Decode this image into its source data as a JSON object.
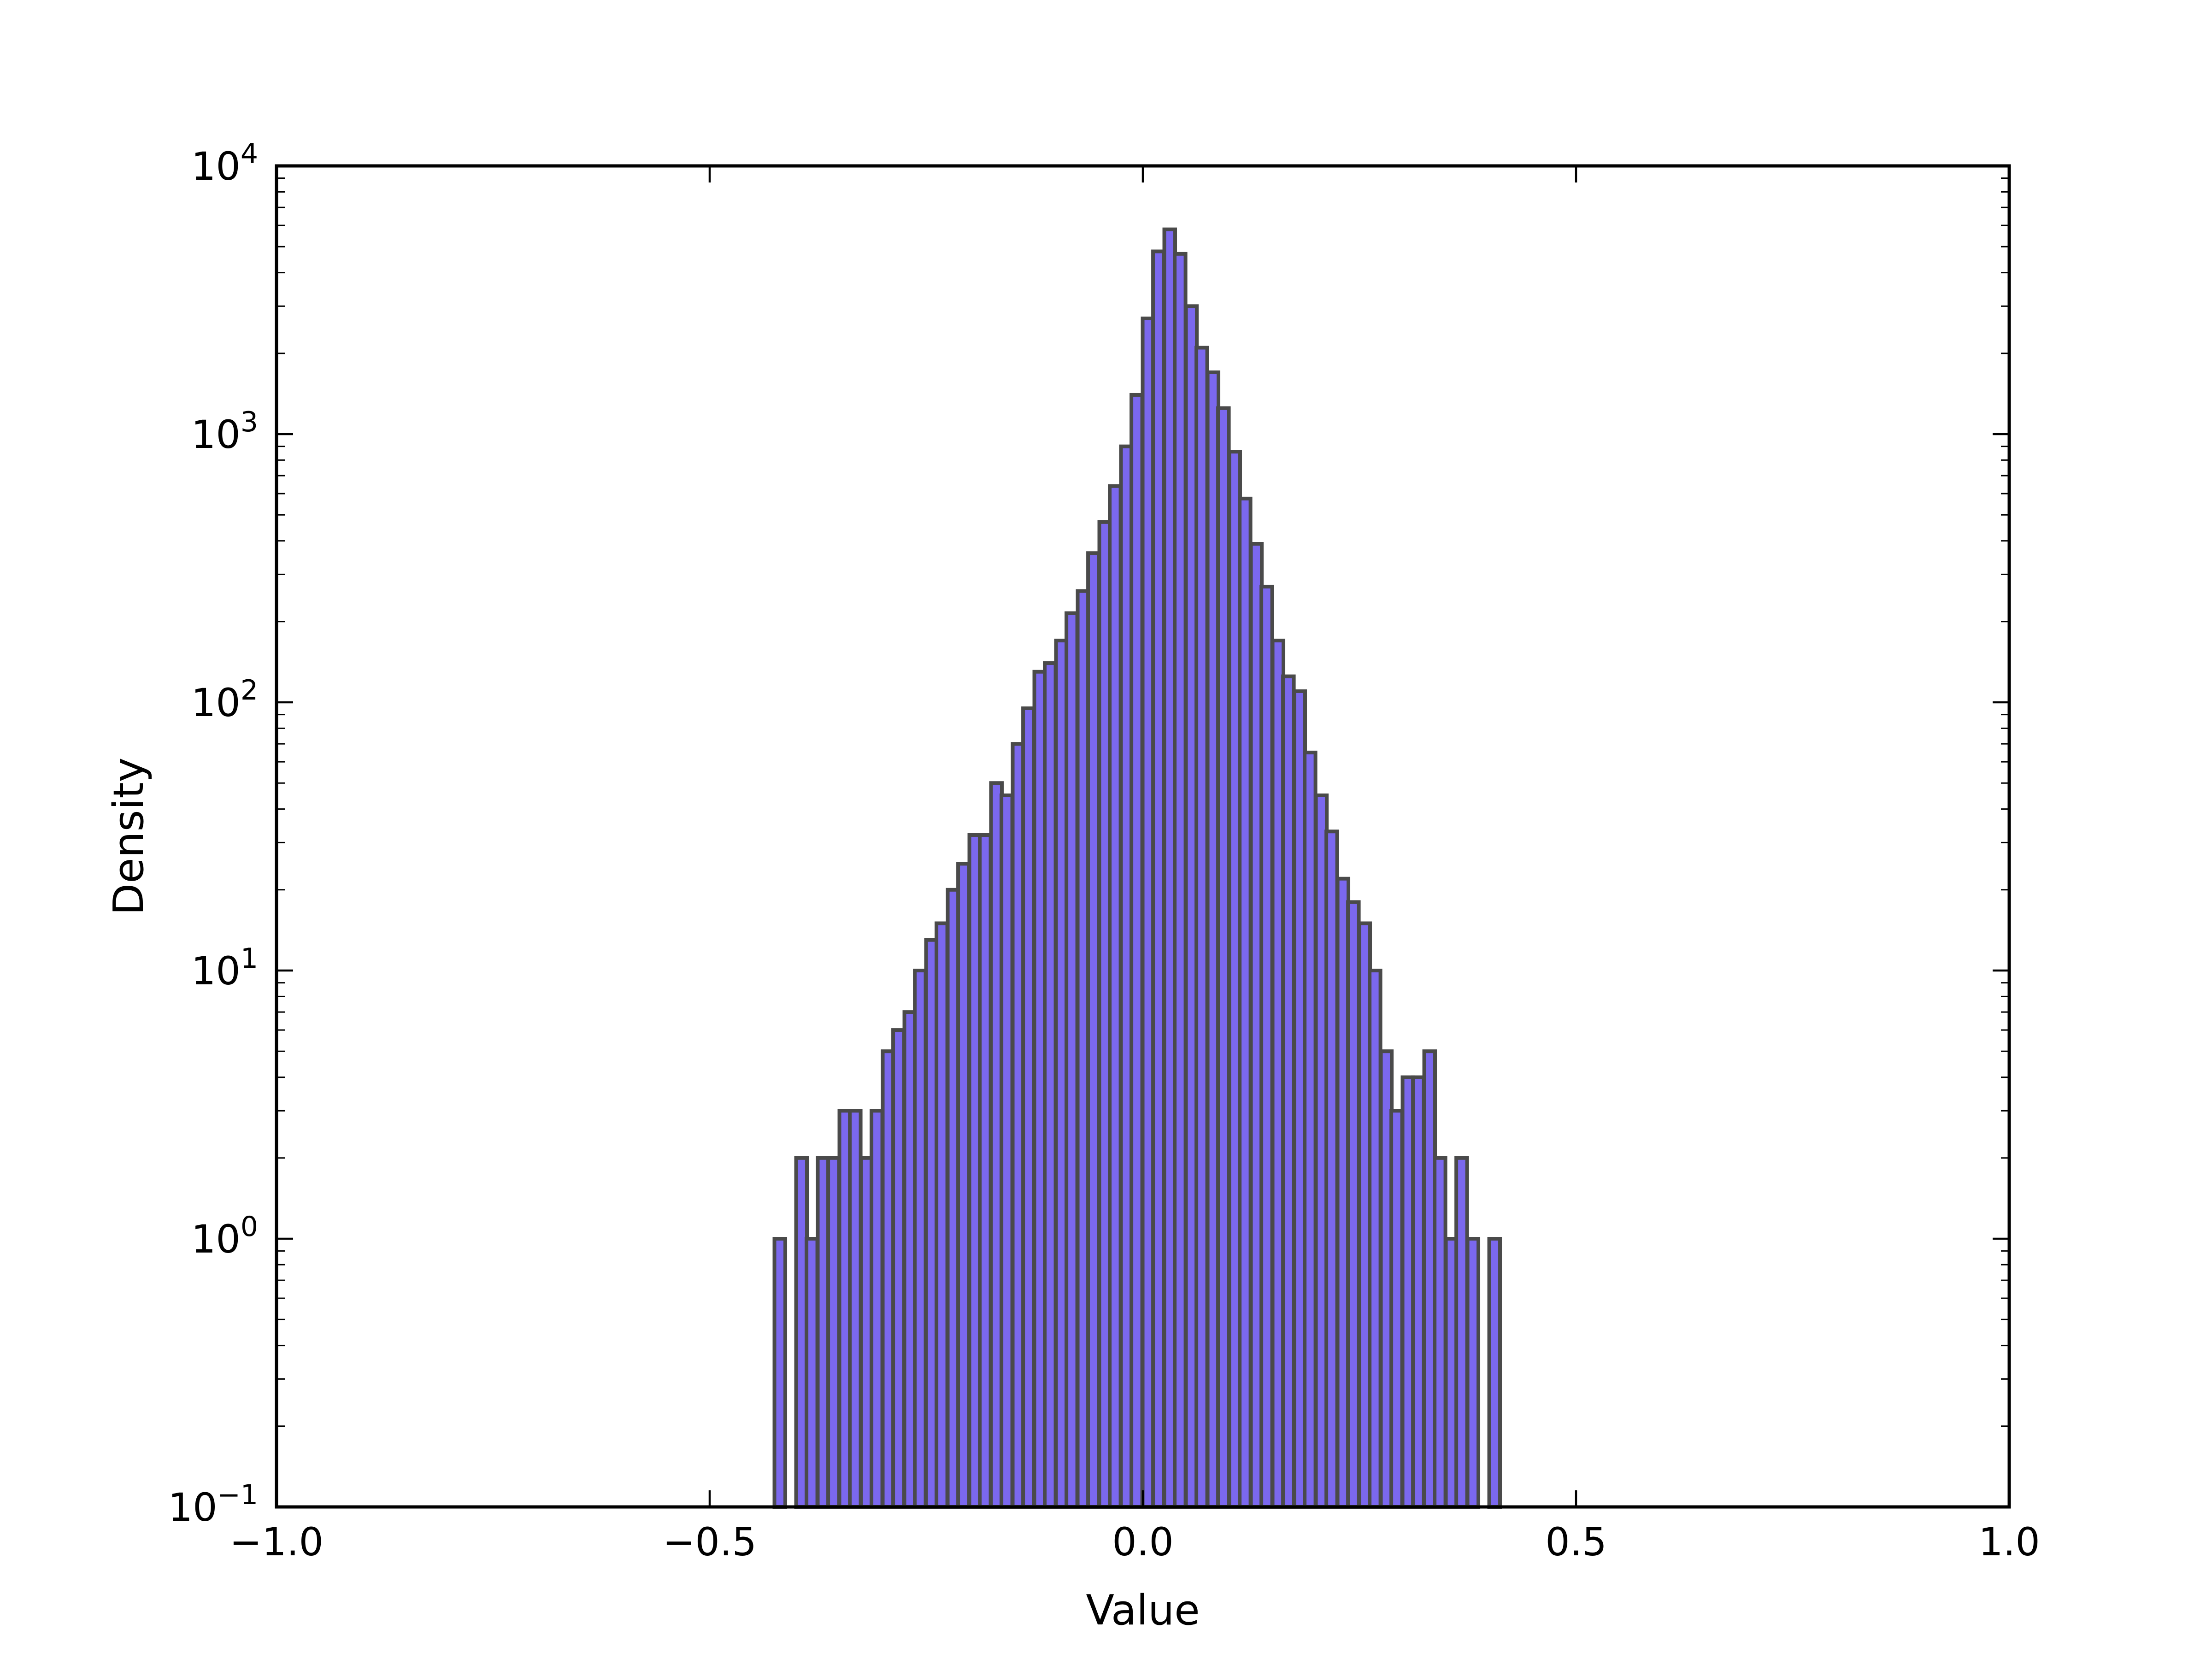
{
  "chart_data": {
    "type": "bar",
    "xlabel": "Value",
    "ylabel": "Density",
    "title": "",
    "xlim": [
      -1.0,
      1.0
    ],
    "ylim": [
      0.1,
      10000
    ],
    "yscale": "log",
    "grid": false,
    "bar_color": "#7b68ee",
    "bar_edge_color": "#4a4a4a",
    "x_ticks": [
      "−1.0",
      "−0.5",
      "0.0",
      "0.5",
      "1.0"
    ],
    "x_tick_values": [
      -1.0,
      -0.5,
      0.0,
      0.5,
      1.0
    ],
    "y_ticks": [
      {
        "base": "10",
        "exp": "−1",
        "value": 0.1
      },
      {
        "base": "10",
        "exp": "0",
        "value": 1
      },
      {
        "base": "10",
        "exp": "1",
        "value": 10
      },
      {
        "base": "10",
        "exp": "2",
        "value": 100
      },
      {
        "base": "10",
        "exp": "3",
        "value": 1000
      },
      {
        "base": "10",
        "exp": "4",
        "value": 10000
      }
    ],
    "bin_width": 0.0125,
    "bin_centers": [
      -0.419,
      -0.394,
      -0.382,
      -0.369,
      -0.357,
      -0.344,
      -0.332,
      -0.319,
      -0.307,
      -0.294,
      -0.282,
      -0.269,
      -0.257,
      -0.244,
      -0.232,
      -0.219,
      -0.207,
      -0.194,
      -0.182,
      -0.169,
      -0.157,
      -0.144,
      -0.132,
      -0.119,
      -0.107,
      -0.094,
      -0.082,
      -0.069,
      -0.057,
      -0.044,
      -0.032,
      -0.019,
      -0.007,
      0.006,
      0.018,
      0.031,
      0.043,
      0.056,
      0.068,
      0.081,
      0.093,
      0.106,
      0.118,
      0.131,
      0.143,
      0.156,
      0.168,
      0.181,
      0.193,
      0.206,
      0.218,
      0.231,
      0.243,
      0.256,
      0.268,
      0.281,
      0.293,
      0.306,
      0.318,
      0.331,
      0.343,
      0.356,
      0.368,
      0.381,
      0.406
    ],
    "values": [
      1,
      2,
      1,
      2,
      2,
      3,
      3,
      2,
      3,
      5,
      6,
      7,
      10,
      13,
      15,
      20,
      25,
      32,
      32,
      50,
      45,
      70,
      95,
      130,
      140,
      170,
      215,
      260,
      360,
      470,
      640,
      900,
      1400,
      2700,
      4800,
      5800,
      4700,
      3000,
      2100,
      1700,
      1250,
      860,
      575,
      390,
      270,
      170,
      125,
      110,
      65,
      45,
      33,
      22,
      18,
      15,
      10,
      5,
      3,
      4,
      4,
      5,
      2,
      1,
      2,
      1,
      1
    ]
  }
}
